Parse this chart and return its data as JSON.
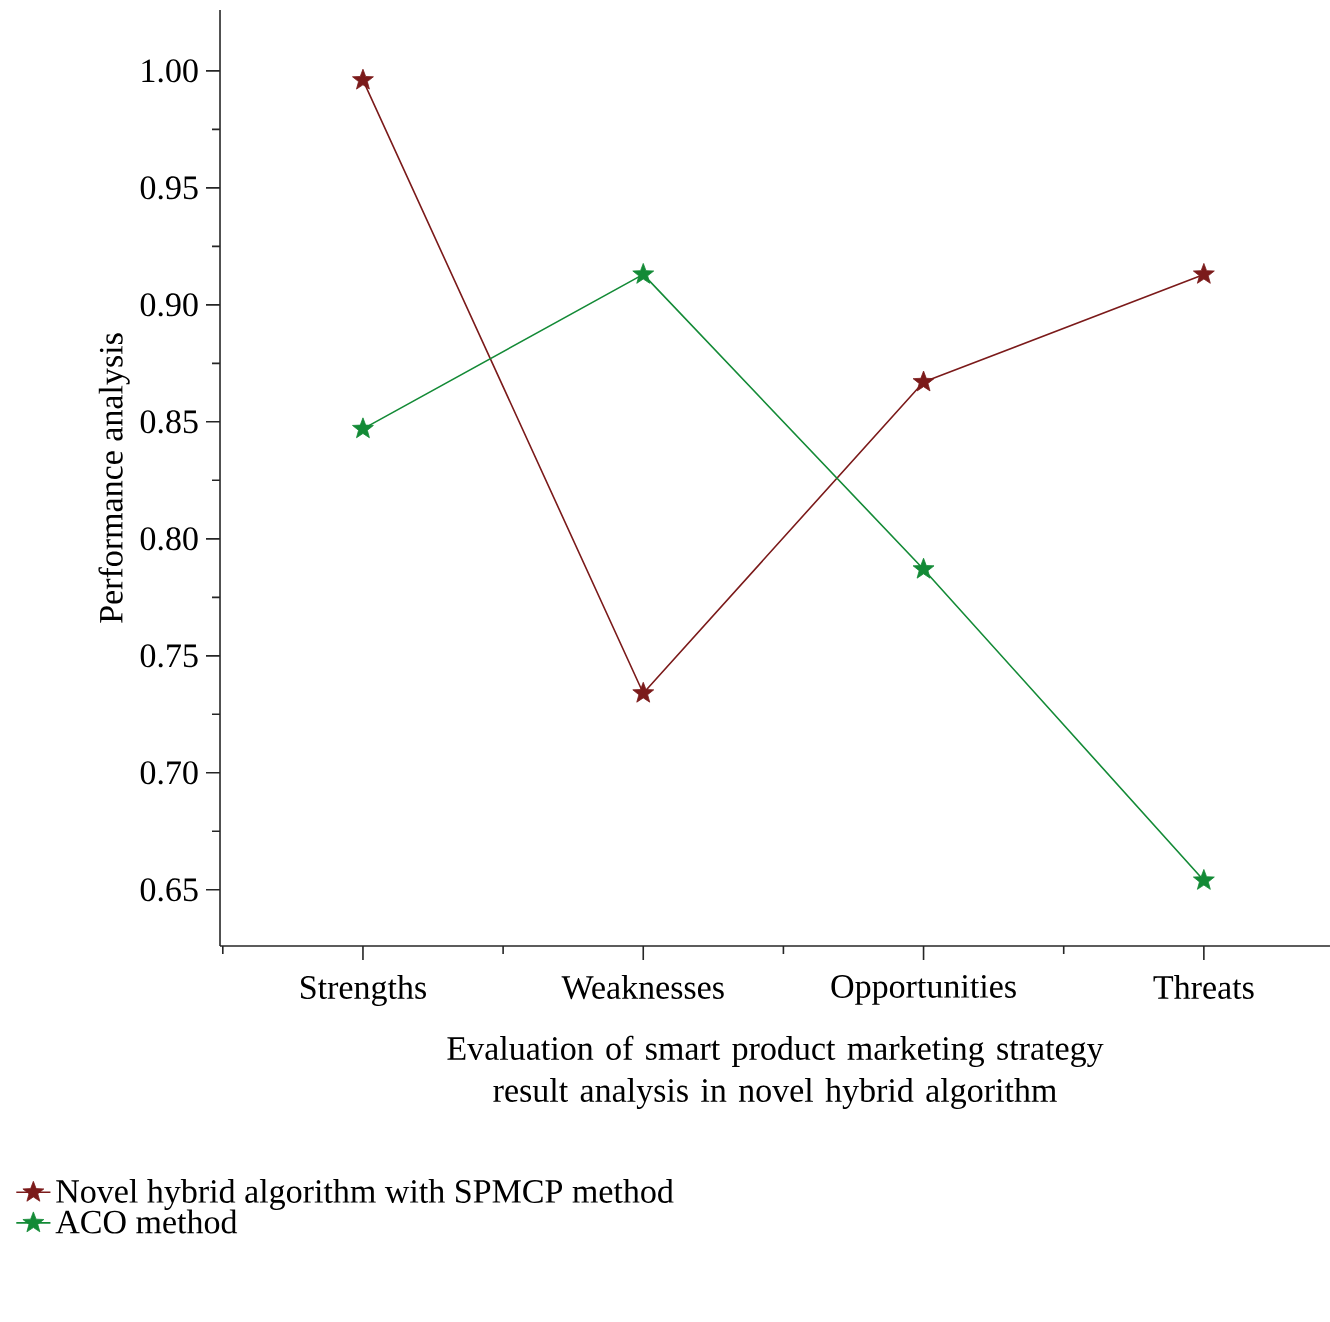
{
  "chart_data": {
    "type": "line",
    "xlabel": "Evaluation of smart product marketing strategy result analysis in novel hybrid algorithm",
    "ylabel": "Performance analysis",
    "categories": [
      "Strengths",
      "Weaknesses",
      "Opportunities",
      "Threats"
    ],
    "series": [
      {
        "name": "Novel hybrid algorithm with SPMCP method",
        "color": "#7b1a1a",
        "values": [
          0.996,
          0.734,
          0.867,
          0.913
        ]
      },
      {
        "name": "ACO method",
        "color": "#138a36",
        "values": [
          0.847,
          0.913,
          0.787,
          0.654
        ]
      }
    ],
    "ylim": [
      0.626,
      1.026
    ],
    "yticks": [
      {
        "value": 0.65,
        "label": "0.65"
      },
      {
        "value": 0.7,
        "label": "0.70"
      },
      {
        "value": 0.75,
        "label": "0.75"
      },
      {
        "value": 0.8,
        "label": "0.80"
      },
      {
        "value": 0.85,
        "label": "0.85"
      },
      {
        "value": 0.9,
        "label": "0.90"
      },
      {
        "value": 0.95,
        "label": "0.95"
      },
      {
        "value": 1.0,
        "label": "1.00"
      }
    ],
    "grid": false,
    "legend": "bottom",
    "marker": "star",
    "line_style": "solid"
  }
}
